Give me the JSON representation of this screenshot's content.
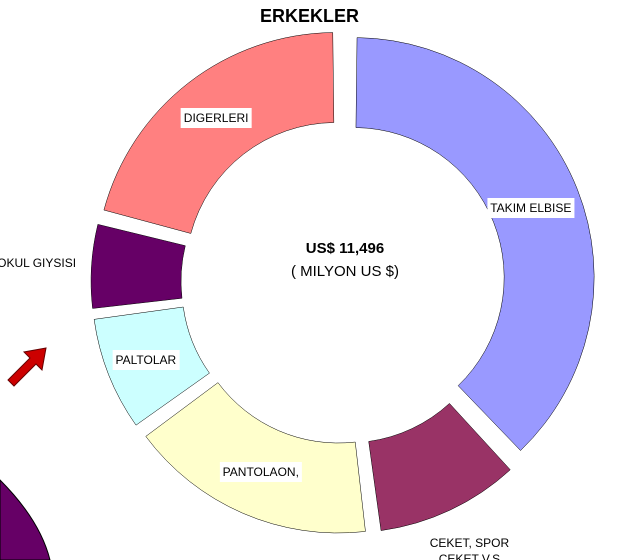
{
  "chart_data": {
    "type": "donut",
    "title": "ERKEKLER",
    "center_title": "US$ 11,496",
    "center_subtitle": "( MILYON US $)",
    "categories": [
      "TAKIM ELBISE",
      "CEKET, SPOR CEKET V.S",
      "PANTOLAON,",
      "PALTOLAR",
      "OKUL GIYSISI",
      "DIGERLERI"
    ],
    "values": [
      38,
      10,
      17,
      8,
      6,
      21
    ],
    "colors": [
      "#9999ff",
      "#993366",
      "#ffffcc",
      "#ccffff",
      "#660066",
      "#ff8080"
    ]
  }
}
